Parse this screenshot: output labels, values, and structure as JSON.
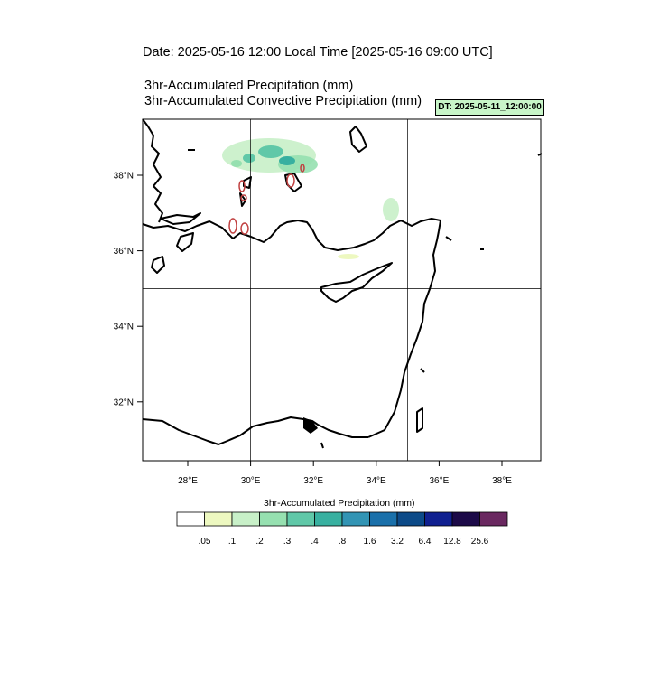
{
  "header": {
    "date_line": "Date: 2025-05-16  12:00 Local Time [2025-05-16  09:00 UTC]",
    "field1": "3hr-Accumulated Precipitation   (mm)",
    "field2": "3hr-Accumulated Convective Precipitation   (mm)",
    "dt_badge": "DT: 2025-05-11_12:00:00"
  },
  "map": {
    "lat_labels": [
      "38°N",
      "36°N",
      "34°N",
      "32°N"
    ],
    "lon_labels": [
      "28°E",
      "30°E",
      "32°E",
      "34°E",
      "36°E",
      "38°E"
    ],
    "gridlines": {
      "lon": [
        30,
        35
      ],
      "lat": [
        35
      ]
    }
  },
  "colorbar": {
    "title": "3hr-Accumulated Precipitation   (mm)",
    "levels": [
      ".05",
      ".1",
      ".2",
      ".3",
      ".4",
      ".8",
      "1.6",
      "3.2",
      "6.4",
      "12.8",
      "25.6"
    ],
    "colors": [
      "#ffffff",
      "#edf8c0",
      "#c8f0c8",
      "#96e0b0",
      "#60c8a8",
      "#38b0a0",
      "#3294b4",
      "#1a70aa",
      "#0c4a88",
      "#102090",
      "#1c0a48",
      "#6a2860"
    ]
  }
}
